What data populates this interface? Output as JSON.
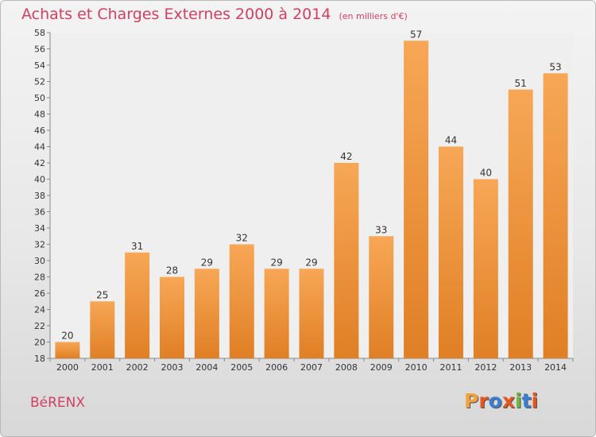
{
  "header": {
    "title": "Achats et Charges Externes 2000 à 2014",
    "subtitle": "(en milliers d'€)"
  },
  "footer": {
    "town": "BéRENX",
    "logo": "Proxiti"
  },
  "colors": {
    "title": "#d14060",
    "bar_light": "#f7a756",
    "bar_dark": "#e07f25",
    "logo_letters": [
      "#f3a23a",
      "#e5551d",
      "#3a7fd1",
      "#e5551d",
      "#6fb63a",
      "#3a7fd1",
      "#e5551d"
    ]
  },
  "chart_data": {
    "type": "bar",
    "title": "Achats et Charges Externes 2000 à 2014",
    "xlabel": "",
    "ylabel": "",
    "categories": [
      "2000",
      "2001",
      "2002",
      "2003",
      "2004",
      "2005",
      "2006",
      "2007",
      "2008",
      "2009",
      "2010",
      "2011",
      "2012",
      "2013",
      "2014"
    ],
    "values": [
      20,
      25,
      31,
      28,
      29,
      32,
      29,
      29,
      42,
      33,
      57,
      44,
      40,
      51,
      53
    ],
    "ylim": [
      18,
      58
    ],
    "ytick_step": 2,
    "grid": false,
    "legend": "none"
  }
}
